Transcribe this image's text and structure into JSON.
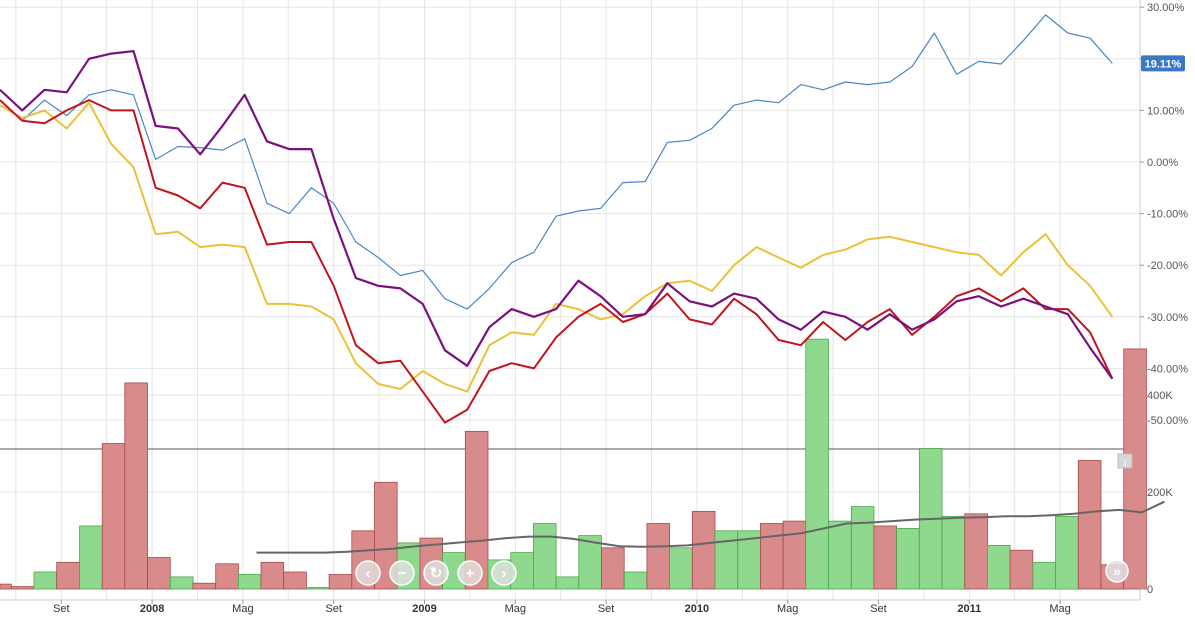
{
  "chart_data": [
    {
      "type": "line",
      "y_unit": "%",
      "ylim": [
        -55,
        30
      ],
      "y_ticks": [
        "30.00%",
        "20.00%",
        "10.00%",
        "0.00%",
        "-10.00%",
        "-20.00%",
        "-30.00%",
        "-40.00%",
        "-50.00%"
      ],
      "y_tick_values": [
        30,
        20,
        10,
        0,
        -10,
        -20,
        -30,
        -40,
        -50
      ],
      "grid": true,
      "current_value_label": "19.11%",
      "current_value": 19.11,
      "x_months": 49,
      "series": [
        {
          "color": "#4a86c8",
          "values": [
            12,
            8,
            12,
            9,
            13,
            14,
            13,
            0.5,
            3,
            2.8,
            2.3,
            4.5,
            -8,
            -10,
            -5,
            -8,
            -15.5,
            -18.5,
            -22,
            -21,
            -26.5,
            -28.5,
            -24.5,
            -19.5,
            -17.5,
            -10.5,
            -9.5,
            -9,
            -4,
            -3.8,
            3.8,
            4.2,
            6.5,
            11,
            12,
            11.5,
            15,
            14,
            15.5,
            15,
            15.5,
            18.5,
            25,
            17,
            19.5,
            19,
            23.5,
            28.5,
            25,
            24,
            19.11
          ]
        },
        {
          "color": "#e8c23a",
          "values": [
            11,
            8.5,
            10,
            6.5,
            11.5,
            3.5,
            -1,
            -14,
            -13.5,
            -16.5,
            -16,
            -16.5,
            -27.5,
            -27.5,
            -28,
            -30.5,
            -39,
            -43,
            -44,
            -40.5,
            -43,
            -44.5,
            -35.5,
            -33,
            -33.5,
            -27.5,
            -28.5,
            -30.5,
            -29.5,
            -26,
            -23.5,
            -23,
            -25,
            -20,
            -16.5,
            -18.5,
            -20.5,
            -18,
            -17,
            -15,
            -14.5,
            -15.5,
            -16.5,
            -17.5,
            -18,
            -22,
            -17.5,
            -14,
            -20,
            -24,
            -30
          ]
        },
        {
          "color": "#c0141e",
          "values": [
            12,
            8,
            7.5,
            10,
            12,
            10,
            10,
            -5,
            -6.5,
            -9,
            -4,
            -5,
            -16,
            -15.5,
            -15.5,
            -24,
            -35.5,
            -39,
            -38.5,
            -44.5,
            -50.5,
            -48,
            -40.5,
            -39,
            -40,
            -34,
            -30,
            -27.5,
            -31,
            -29.5,
            -25.5,
            -30.5,
            -31.5,
            -26.5,
            -29.5,
            -34.5,
            -35.5,
            -31,
            -34.5,
            -31,
            -28.5,
            -33.5,
            -30,
            -26,
            -24.5,
            -27,
            -24.5,
            -28.5,
            -28.5,
            -33,
            -42
          ]
        },
        {
          "color": "#7a1180",
          "values": [
            14,
            10,
            14,
            13.5,
            20,
            21,
            21.5,
            7,
            6.5,
            1.5,
            7,
            13,
            4,
            2.5,
            2.5,
            -11,
            -22.5,
            -24,
            -24.5,
            -27.5,
            -36.5,
            -39.5,
            -32,
            -28.5,
            -30,
            -28.5,
            -23,
            -26,
            -30,
            -29.5,
            -23.5,
            -27,
            -28,
            -25.5,
            -26.5,
            -30.5,
            -32.5,
            -29,
            -30,
            -32.5,
            -29.5,
            -32.5,
            -30.5,
            -27,
            -26,
            -28,
            -26.5,
            -28,
            -29.5,
            -36,
            -42
          ]
        }
      ]
    },
    {
      "type": "bar",
      "ylim": [
        -20000,
        560000
      ],
      "y_ticks": [
        "400K",
        "200K",
        "0"
      ],
      "y_tick_values": [
        400000,
        200000,
        0
      ],
      "grid": true,
      "x_tick_labels": [
        {
          "label": "Set",
          "bold": false,
          "month": 2.7
        },
        {
          "label": "2008",
          "bold": true,
          "month": 6.7
        },
        {
          "label": "Mag",
          "bold": false,
          "month": 10.7
        },
        {
          "label": "Set",
          "bold": false,
          "month": 14.7
        },
        {
          "label": "2009",
          "bold": true,
          "month": 18.7
        },
        {
          "label": "Mag",
          "bold": false,
          "month": 22.7
        },
        {
          "label": "Set",
          "bold": false,
          "month": 26.7
        },
        {
          "label": "2010",
          "bold": true,
          "month": 30.7
        },
        {
          "label": "Mag",
          "bold": false,
          "month": 34.7
        },
        {
          "label": "Set",
          "bold": false,
          "month": 38.7
        },
        {
          "label": "2011",
          "bold": true,
          "month": 42.7
        },
        {
          "label": "Mag",
          "bold": false,
          "month": 46.7
        }
      ],
      "bar_colors": {
        "up": "#8fd98f",
        "down": "#d98a8a",
        "up_edge": "#4aa84a",
        "down_edge": "#a84a4a"
      },
      "bars": [
        {
          "v": 10000,
          "up": false
        },
        {
          "v": 5000,
          "up": false
        },
        {
          "v": 35000,
          "up": true
        },
        {
          "v": 55000,
          "up": false
        },
        {
          "v": 130000,
          "up": true
        },
        {
          "v": 300000,
          "up": false
        },
        {
          "v": 425000,
          "up": false
        },
        {
          "v": 65000,
          "up": false
        },
        {
          "v": 25000,
          "up": true
        },
        {
          "v": 12000,
          "up": false
        },
        {
          "v": 52000,
          "up": false
        },
        {
          "v": 30000,
          "up": true
        },
        {
          "v": 55000,
          "up": false
        },
        {
          "v": 35000,
          "up": false
        },
        {
          "v": 3000,
          "up": true
        },
        {
          "v": 30000,
          "up": false
        },
        {
          "v": 120000,
          "up": false
        },
        {
          "v": 220000,
          "up": false
        },
        {
          "v": 95000,
          "up": true
        },
        {
          "v": 105000,
          "up": false
        },
        {
          "v": 75000,
          "up": true
        },
        {
          "v": 325000,
          "up": false
        },
        {
          "v": 60000,
          "up": true
        },
        {
          "v": 75000,
          "up": true
        },
        {
          "v": 135000,
          "up": true
        },
        {
          "v": 25000,
          "up": true
        },
        {
          "v": 110000,
          "up": true
        },
        {
          "v": 85000,
          "up": false
        },
        {
          "v": 35000,
          "up": true
        },
        {
          "v": 135000,
          "up": false
        },
        {
          "v": 85000,
          "up": true
        },
        {
          "v": 160000,
          "up": false
        },
        {
          "v": 120000,
          "up": true
        },
        {
          "v": 120000,
          "up": true
        },
        {
          "v": 135000,
          "up": false
        },
        {
          "v": 140000,
          "up": false
        },
        {
          "v": 515000,
          "up": true
        },
        {
          "v": 140000,
          "up": true
        },
        {
          "v": 170000,
          "up": true
        },
        {
          "v": 130000,
          "up": false
        },
        {
          "v": 125000,
          "up": true
        },
        {
          "v": 290000,
          "up": true
        },
        {
          "v": 150000,
          "up": true
        },
        {
          "v": 155000,
          "up": false
        },
        {
          "v": 90000,
          "up": true
        },
        {
          "v": 80000,
          "up": false
        },
        {
          "v": 55000,
          "up": true
        },
        {
          "v": 150000,
          "up": true
        },
        {
          "v": 265000,
          "up": false
        },
        {
          "v": 50000,
          "up": false
        },
        {
          "v": 495000,
          "up": false
        }
      ],
      "moving_average": {
        "color": "#666666",
        "start_month": 11.3,
        "values": [
          75000,
          75000,
          75000,
          75000,
          77000,
          80000,
          83000,
          88000,
          92000,
          96000,
          100000,
          105000,
          108000,
          108000,
          103000,
          95000,
          88000,
          87000,
          88000,
          90000,
          95000,
          100000,
          105000,
          110000,
          115000,
          125000,
          135000,
          137000,
          140000,
          143000,
          145000,
          147000,
          148000,
          150000,
          150000,
          152000,
          155000,
          160000,
          163000,
          158000,
          180000
        ]
      }
    }
  ],
  "navigator": {
    "buttons": [
      {
        "name": "nav-left-button",
        "glyph": "‹"
      },
      {
        "name": "nav-zoom-out-button",
        "glyph": "−"
      },
      {
        "name": "nav-reset-button",
        "glyph": "↻"
      },
      {
        "name": "nav-zoom-in-button",
        "glyph": "+"
      },
      {
        "name": "nav-right-button",
        "glyph": "›"
      }
    ],
    "scroll_end_glyph": "»",
    "corner_glyph": "↕"
  }
}
